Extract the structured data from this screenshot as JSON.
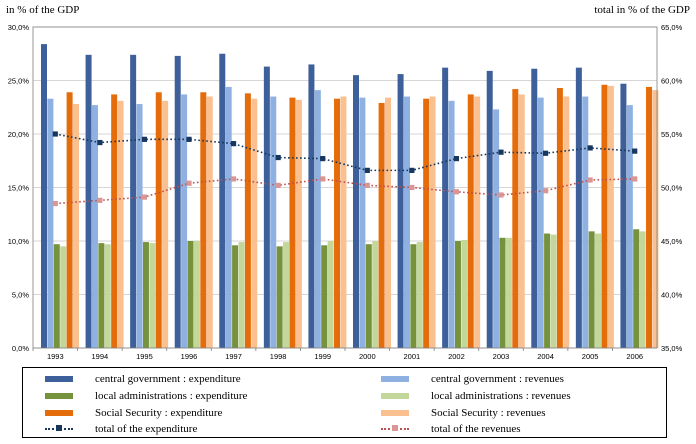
{
  "chart_data": {
    "type": "bar",
    "left_axis_title": "in % of the GDP",
    "right_axis_title": "total  in % of the GDP",
    "categories": [
      "1993",
      "1994",
      "1995",
      "1996",
      "1997",
      "1998",
      "1999",
      "2000",
      "2001",
      "2002",
      "2003",
      "2004",
      "2005",
      "2006"
    ],
    "left_axis": {
      "ylim": [
        0,
        30
      ],
      "ticks": [
        "0,0%",
        "5,0%",
        "10,0%",
        "15,0%",
        "20,0%",
        "25,0%",
        "30,0%"
      ],
      "tick_values": [
        0,
        5,
        10,
        15,
        20,
        25,
        30
      ]
    },
    "right_axis": {
      "ylim": [
        35,
        65
      ],
      "ticks": [
        "35,0%",
        "40,0%",
        "45,0%",
        "50,0%",
        "55,0%",
        "60,0%",
        "65,0%"
      ],
      "tick_values": [
        35,
        40,
        45,
        50,
        55,
        60,
        65
      ]
    },
    "grid": true,
    "legend_position": "bottom",
    "bar_series": [
      {
        "name": "central government : expenditure",
        "color": "#3d5f9a",
        "values": [
          28.4,
          27.4,
          27.4,
          27.3,
          27.5,
          26.3,
          26.5,
          25.5,
          25.6,
          26.2,
          25.9,
          26.1,
          26.2,
          24.7
        ]
      },
      {
        "name": "central government : revenues",
        "color": "#8eb1e2",
        "values": [
          23.3,
          22.7,
          22.8,
          23.7,
          24.4,
          23.5,
          24.1,
          23.4,
          23.5,
          23.1,
          22.3,
          23.4,
          23.5,
          22.7
        ]
      },
      {
        "name": "local administrations : expenditure",
        "color": "#76923c",
        "values": [
          9.7,
          9.8,
          9.9,
          10.0,
          9.6,
          9.5,
          9.6,
          9.7,
          9.7,
          10.0,
          10.3,
          10.7,
          10.9,
          11.1
        ]
      },
      {
        "name": "local administrations : revenues",
        "color": "#c4d79b",
        "values": [
          9.5,
          9.7,
          9.8,
          10.0,
          9.9,
          9.9,
          10.0,
          10.0,
          9.9,
          10.1,
          10.3,
          10.6,
          10.7,
          10.9
        ]
      },
      {
        "name": "Social Security : expenditure",
        "color": "#e46c0a",
        "values": [
          23.9,
          23.7,
          23.9,
          23.9,
          23.8,
          23.4,
          23.3,
          22.9,
          23.3,
          23.7,
          24.2,
          24.3,
          24.6,
          24.4
        ]
      },
      {
        "name": "Social Security : revenues",
        "color": "#fac090",
        "values": [
          22.8,
          23.1,
          23.1,
          23.5,
          23.3,
          23.2,
          23.5,
          23.4,
          23.5,
          23.5,
          23.7,
          23.5,
          24.5,
          24.1
        ]
      }
    ],
    "line_series": [
      {
        "name": "total of the expenditure",
        "color": "#17375e",
        "axis": "right",
        "values": [
          55.0,
          54.2,
          54.5,
          54.5,
          54.1,
          52.8,
          52.7,
          51.6,
          51.6,
          52.7,
          53.3,
          53.2,
          53.7,
          53.4
        ]
      },
      {
        "name": "total of the revenues",
        "color": "#c0504d",
        "marker_color": "#d99694",
        "axis": "right",
        "values": [
          48.5,
          48.8,
          49.1,
          50.4,
          50.8,
          50.2,
          50.8,
          50.2,
          50.0,
          49.6,
          49.3,
          49.7,
          50.7,
          50.8
        ]
      }
    ]
  }
}
